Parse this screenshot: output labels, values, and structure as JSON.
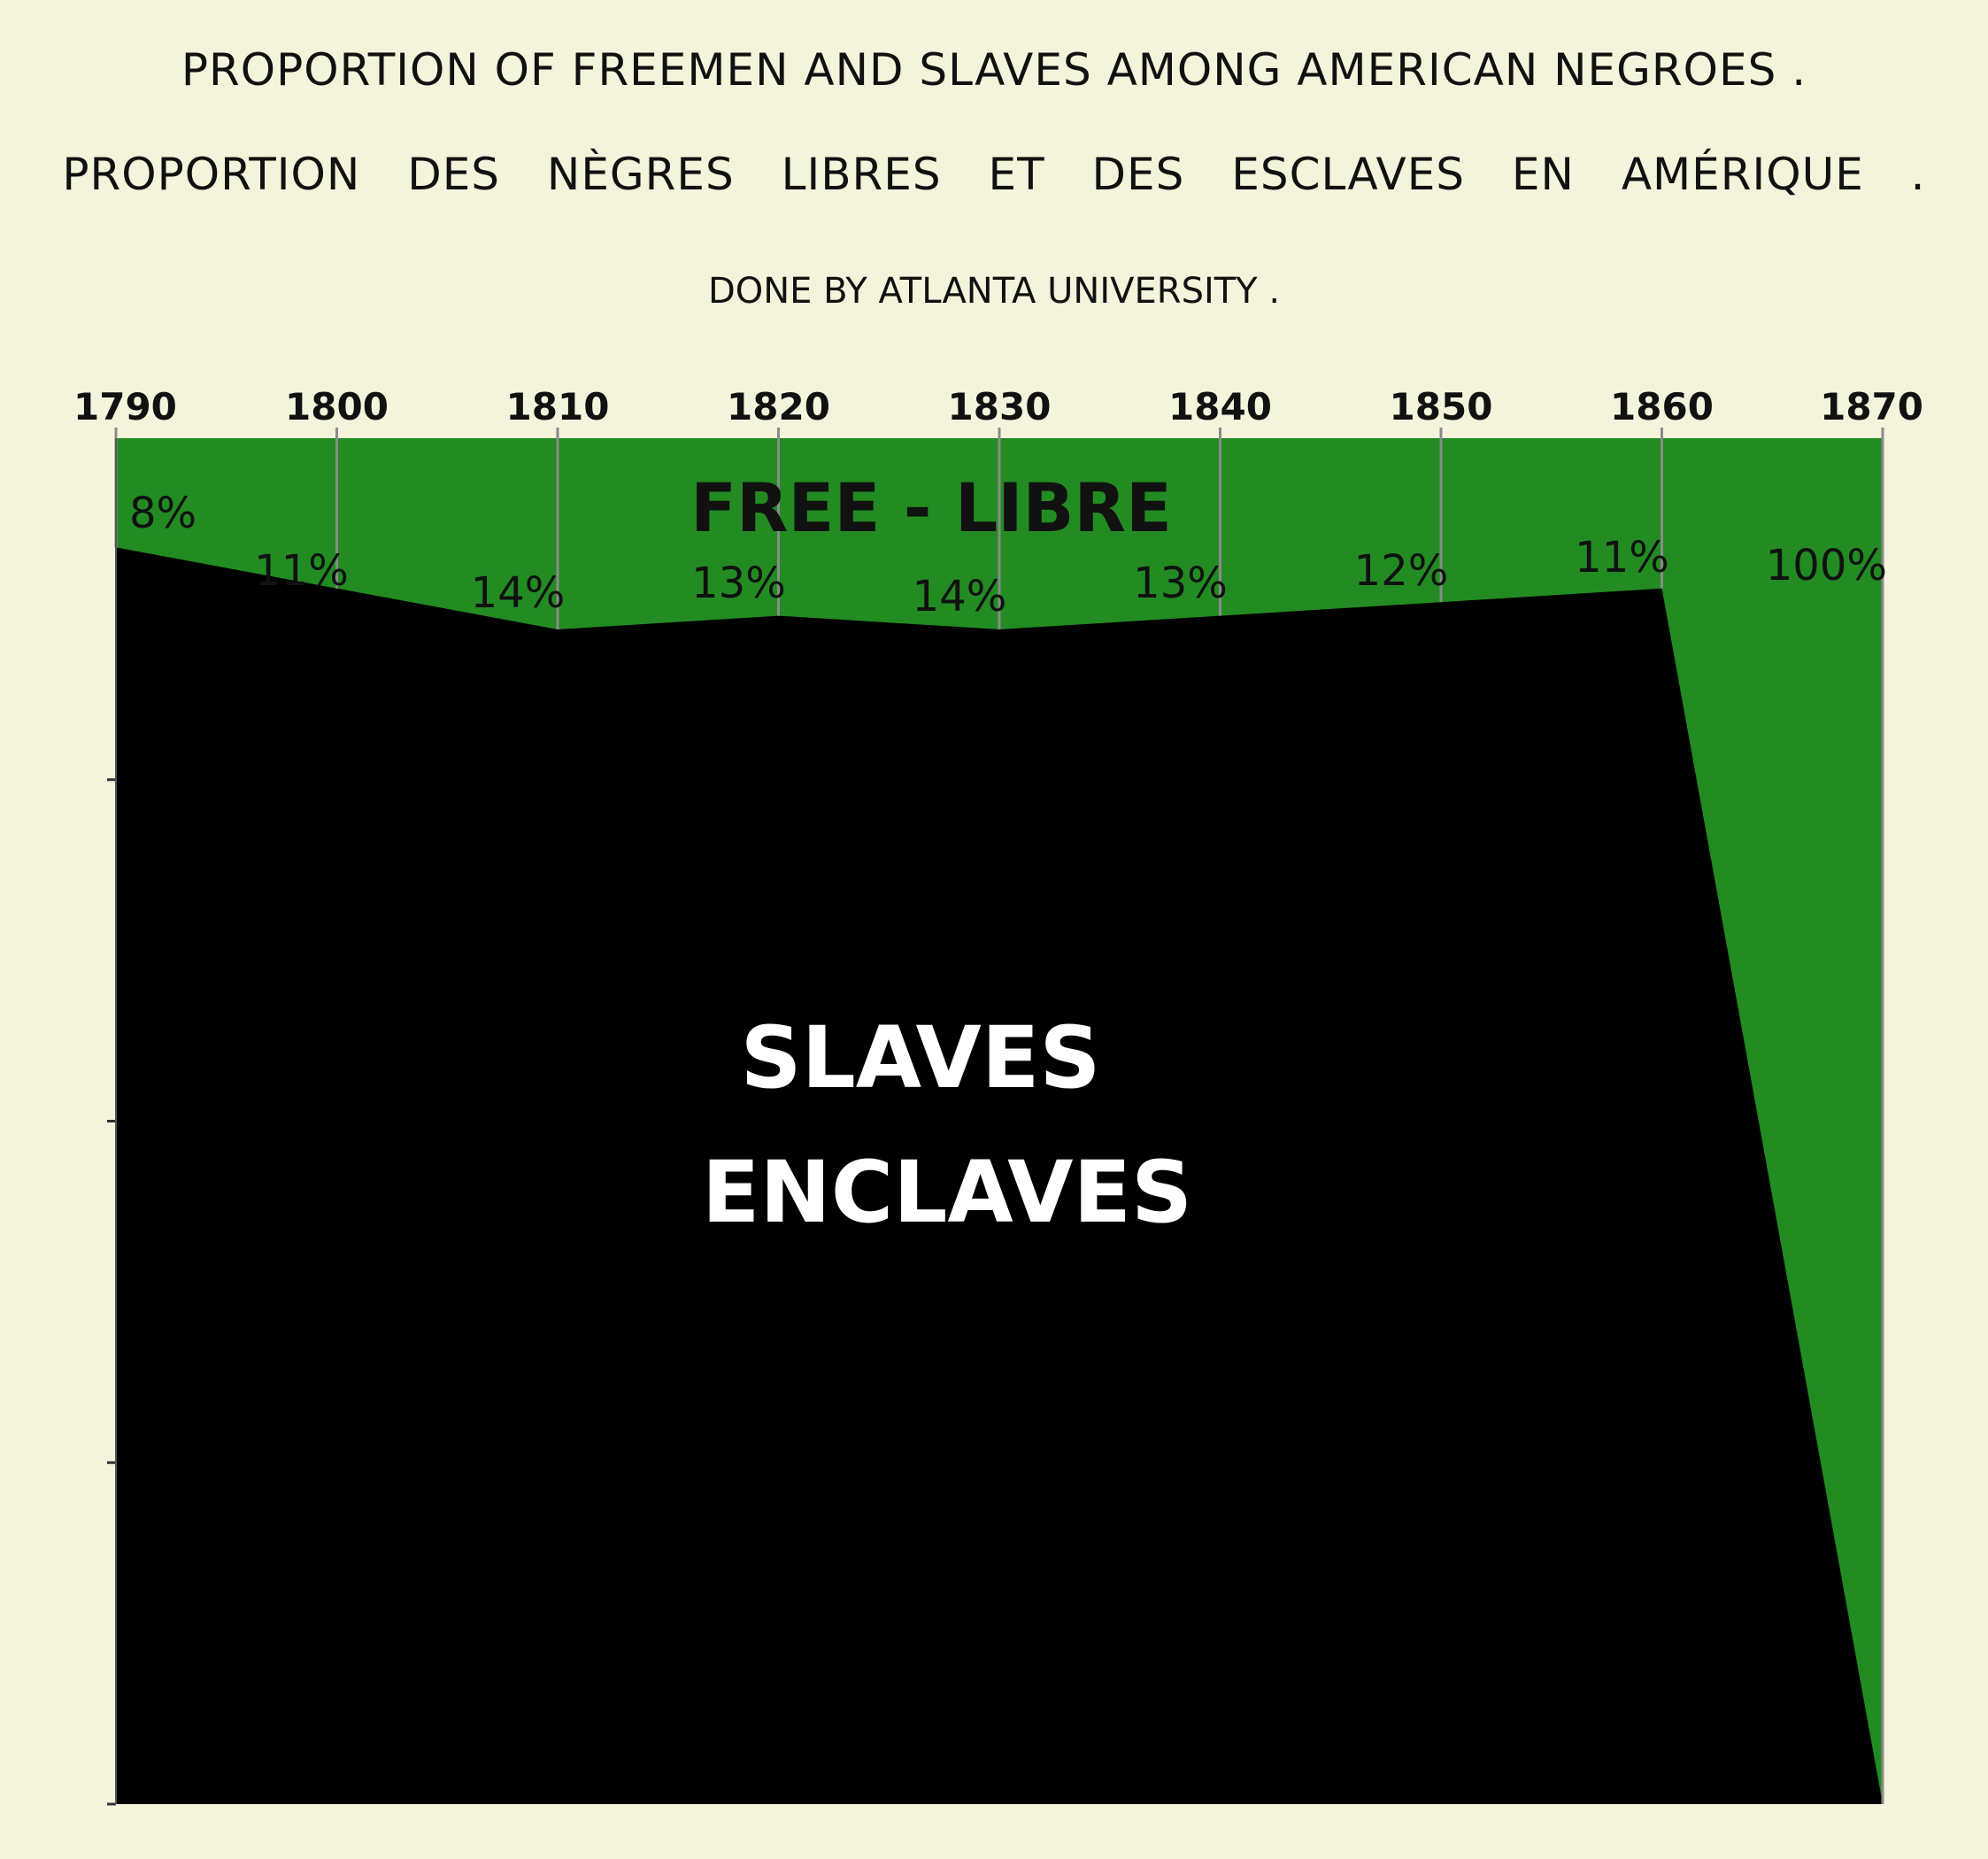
{
  "titles": {
    "english": "PROPORTION OF FREEMEN AND SLAVES AMONG AMERICAN NEGROES .",
    "french": "PROPORTION DES NÈGRES LIBRES ET DES ESCLAVES EN AMÉRIQUE .",
    "credit": "DONE BY ATLANTA UNIVERSITY ."
  },
  "colors": {
    "background": "#f4f4dd",
    "free": "#228b22",
    "slaves": "#000000",
    "gridline": "#8a8a8a",
    "text": "#111111",
    "slave_text": "#ffffff"
  },
  "chart_data": {
    "type": "area",
    "stacking": "percent",
    "x_axis_position": "top",
    "x": [
      1790,
      1800,
      1810,
      1820,
      1830,
      1840,
      1850,
      1860,
      1870
    ],
    "tick_labels": [
      "1790",
      "1800",
      "1810",
      "1820",
      "1830",
      "1840",
      "1850",
      "1860",
      "1870"
    ],
    "free_percent": [
      8,
      11,
      14,
      13,
      14,
      13,
      12,
      11,
      100
    ],
    "free_percent_labels": [
      "8%",
      "11%",
      "14%",
      "13%",
      "14%",
      "13%",
      "12%",
      "11%",
      "100%"
    ],
    "slave_percent": [
      92,
      89,
      86,
      87,
      86,
      87,
      88,
      89,
      0
    ],
    "ylim": [
      0,
      100
    ],
    "series": [
      {
        "name": "FREE - LIBRE",
        "key": "free_percent"
      },
      {
        "name": "SLAVES\nENCLAVES",
        "key": "slave_percent"
      }
    ],
    "area_labels": {
      "free": "FREE - LIBRE",
      "slaves_line1": "SLAVES",
      "slaves_line2": "ENCLAVES"
    }
  }
}
